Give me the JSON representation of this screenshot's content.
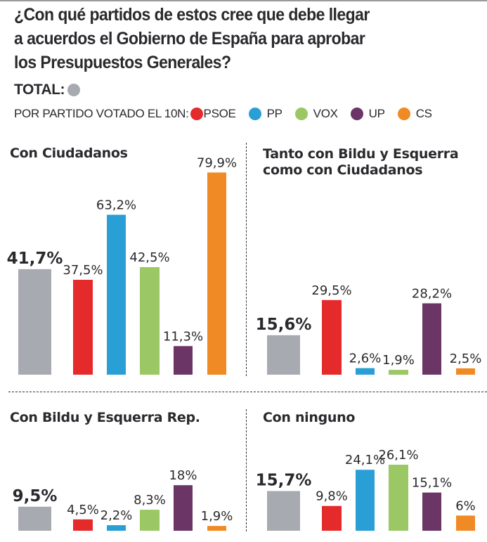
{
  "title": "¿Con qué partidos de estos cree que debe llegar a acuerdos el Gobierno de España para aprobar los Presupuestos Generales?",
  "title_lines": [
    "¿Con qué partidos de estos cree que debe llegar",
    "a acuerdos el Gobierno de España para aprobar",
    "los Presupuestos Generales?"
  ],
  "total_label": "TOTAL:",
  "legend_label": "POR PARTIDO VOTADO EL 10N:",
  "colors": {
    "TOTAL": "#a7aab0",
    "PSOE": "#e42a2a",
    "PP": "#2a9fd6",
    "VOX": "#9bc764",
    "UP": "#6b3566",
    "CS": "#f08a24"
  },
  "legend": [
    {
      "name": "PSOE",
      "color": "#e42a2a"
    },
    {
      "name": "PP",
      "color": "#2a9fd6"
    },
    {
      "name": "VOX",
      "color": "#9bc764"
    },
    {
      "name": "UP",
      "color": "#6b3566"
    },
    {
      "name": "CS",
      "color": "#f08a24"
    }
  ],
  "chart_data": [
    {
      "type": "bar",
      "title": "Con Ciudadanos",
      "categories": [
        "TOTAL",
        "PSOE",
        "PP",
        "VOX",
        "UP",
        "CS"
      ],
      "values": [
        41.7,
        37.5,
        63.2,
        42.5,
        11.3,
        79.9
      ],
      "labels": [
        "41,7%",
        "37,5%",
        "63,2%",
        "42,5%",
        "11,3%",
        "79,9%"
      ],
      "ylim": [
        0,
        100
      ]
    },
    {
      "type": "bar",
      "title": "Tanto con Bildu y Esquerra como con Ciudadanos",
      "title_lines": [
        "Tanto con Bildu y Esquerra",
        "como con Ciudadanos"
      ],
      "categories": [
        "TOTAL",
        "PSOE",
        "PP",
        "VOX",
        "UP",
        "CS"
      ],
      "values": [
        15.6,
        29.5,
        2.6,
        1.9,
        28.2,
        2.5
      ],
      "labels": [
        "15,6%",
        "29,5%",
        "2,6%",
        "1,9%",
        "28,2%",
        "2,5%"
      ],
      "ylim": [
        0,
        100
      ]
    },
    {
      "type": "bar",
      "title": "Con Bildu y Esquerra Rep.",
      "categories": [
        "TOTAL",
        "PSOE",
        "PP",
        "VOX",
        "UP",
        "CS"
      ],
      "values": [
        9.5,
        4.5,
        2.2,
        8.3,
        18,
        1.9
      ],
      "labels": [
        "9,5%",
        "4,5%",
        "2,2%",
        "8,3%",
        "18%",
        "1,9%"
      ],
      "ylim": [
        0,
        100
      ]
    },
    {
      "type": "bar",
      "title": "Con ninguno",
      "categories": [
        "TOTAL",
        "PSOE",
        "PP",
        "VOX",
        "UP",
        "CS"
      ],
      "values": [
        15.7,
        9.8,
        24.1,
        26.1,
        15.1,
        6
      ],
      "labels": [
        "15,7%",
        "9,8%",
        "24,1%",
        "26,1%",
        "15,1%",
        "6%"
      ],
      "ylim": [
        0,
        100
      ]
    }
  ]
}
